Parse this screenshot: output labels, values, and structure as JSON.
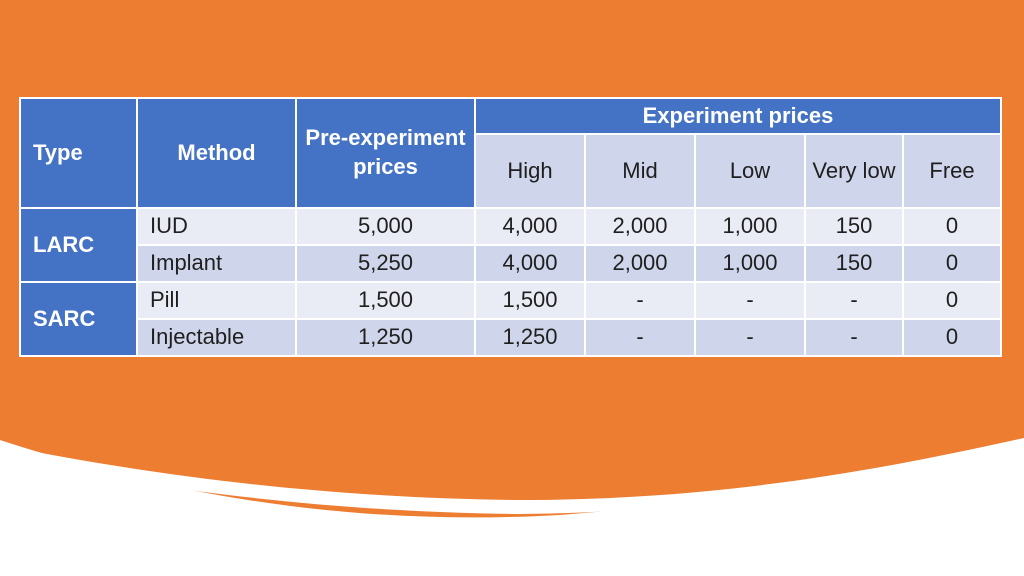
{
  "colors": {
    "background_orange": "#ed7d31",
    "header_blue": "#4472c4",
    "row_light": "#e9ebf5",
    "row_dark": "#cfd5ea"
  },
  "table": {
    "headers": {
      "type": "Type",
      "method": "Method",
      "pre_experiment": "Pre-experiment prices",
      "experiment": "Experiment prices",
      "sub": [
        "High",
        "Mid",
        "Low",
        "Very low",
        "Free"
      ]
    },
    "groups": [
      {
        "type": "LARC",
        "rows": [
          {
            "method": "IUD",
            "pre": "5,000",
            "values": [
              "4,000",
              "2,000",
              "1,000",
              "150",
              "0"
            ]
          },
          {
            "method": "Implant",
            "pre": "5,250",
            "values": [
              "4,000",
              "2,000",
              "1,000",
              "150",
              "0"
            ]
          }
        ]
      },
      {
        "type": "SARC",
        "rows": [
          {
            "method": "Pill",
            "pre": "1,500",
            "values": [
              "1,500",
              "-",
              "-",
              "-",
              "0"
            ]
          },
          {
            "method": "Injectable",
            "pre": "1,250",
            "values": [
              "1,250",
              "-",
              "-",
              "-",
              "0"
            ]
          }
        ]
      }
    ]
  }
}
